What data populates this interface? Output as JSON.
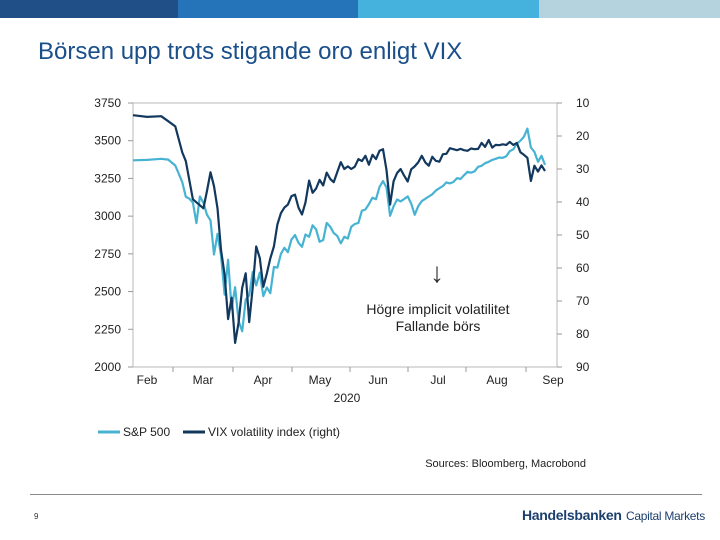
{
  "colors": {
    "bar": [
      "#1f4f86",
      "#2573b8",
      "#45b2de",
      "#b5d2df"
    ],
    "title": "#1a4f8a",
    "sp500": "#47b3d3",
    "vix": "#12385e"
  },
  "title": "Börsen upp trots stigande oro enligt VIX",
  "chart_data": {
    "type": "line",
    "x_months": [
      "Feb",
      "Mar",
      "Apr",
      "May",
      "Jun",
      "Jul",
      "Aug",
      "Sep"
    ],
    "x_year": "2020",
    "y_left": {
      "range": [
        2000,
        3750
      ],
      "ticks": [
        "3750",
        "3500",
        "3250",
        "3000",
        "2750",
        "2500",
        "2250",
        "2000"
      ]
    },
    "y_right": {
      "range": [
        10,
        90
      ],
      "inverted": true,
      "ticks": [
        "10",
        "20",
        "30",
        "40",
        "50",
        "60",
        "70",
        "80",
        "90"
      ]
    },
    "annotation": {
      "arrow": "↓",
      "line1": "Högre implicit volatilitet",
      "line2": "Fallande börs"
    },
    "series": [
      {
        "name": "S&P 500",
        "axis": "left",
        "points": [
          [
            0,
            3370
          ],
          [
            2,
            3373
          ],
          [
            4,
            3380
          ],
          [
            5,
            3375
          ],
          [
            6,
            3336
          ],
          [
            7,
            3225
          ],
          [
            7.5,
            3128
          ],
          [
            8,
            3116
          ],
          [
            8.5,
            3090
          ],
          [
            9,
            2954
          ],
          [
            9.5,
            3130
          ],
          [
            10,
            3090
          ],
          [
            10.5,
            3010
          ],
          [
            11,
            2972
          ],
          [
            11.5,
            2746
          ],
          [
            12,
            2882
          ],
          [
            12.5,
            2741
          ],
          [
            13,
            2480
          ],
          [
            13.5,
            2711
          ],
          [
            14,
            2386
          ],
          [
            14.5,
            2529
          ],
          [
            15,
            2305
          ],
          [
            15.5,
            2237
          ],
          [
            16,
            2447
          ],
          [
            16.5,
            2475
          ],
          [
            17,
            2630
          ],
          [
            17.5,
            2541
          ],
          [
            18,
            2626
          ],
          [
            18.5,
            2470
          ],
          [
            19,
            2527
          ],
          [
            19.5,
            2489
          ],
          [
            20,
            2663
          ],
          [
            20.5,
            2659
          ],
          [
            21,
            2750
          ],
          [
            21.5,
            2790
          ],
          [
            22,
            2761
          ],
          [
            22.5,
            2846
          ],
          [
            23,
            2875
          ],
          [
            23.5,
            2823
          ],
          [
            24,
            2797
          ],
          [
            24.5,
            2878
          ],
          [
            25,
            2863
          ],
          [
            25.5,
            2939
          ],
          [
            26,
            2912
          ],
          [
            26.5,
            2830
          ],
          [
            27,
            2842
          ],
          [
            27.5,
            2955
          ],
          [
            28,
            2930
          ],
          [
            28.5,
            2888
          ],
          [
            29,
            2870
          ],
          [
            29.5,
            2820
          ],
          [
            30,
            2863
          ],
          [
            30.5,
            2852
          ],
          [
            31,
            2930
          ],
          [
            31.5,
            2948
          ],
          [
            32,
            2955
          ],
          [
            32.5,
            3036
          ],
          [
            33,
            3044
          ],
          [
            33.5,
            3080
          ],
          [
            34,
            3122
          ],
          [
            34.5,
            3112
          ],
          [
            35,
            3193
          ],
          [
            35.5,
            3232
          ],
          [
            36,
            3190
          ],
          [
            36.5,
            3002
          ],
          [
            37,
            3066
          ],
          [
            37.5,
            3110
          ],
          [
            38,
            3098
          ],
          [
            38.5,
            3113
          ],
          [
            39,
            3131
          ],
          [
            39.5,
            3083
          ],
          [
            40,
            3009
          ],
          [
            40.5,
            3065
          ],
          [
            41,
            3100
          ],
          [
            41.5,
            3115
          ],
          [
            42,
            3130
          ],
          [
            42.5,
            3145
          ],
          [
            43,
            3169
          ],
          [
            43.5,
            3185
          ],
          [
            44,
            3200
          ],
          [
            44.5,
            3224
          ],
          [
            45,
            3217
          ],
          [
            45.5,
            3226
          ],
          [
            46,
            3252
          ],
          [
            46.5,
            3246
          ],
          [
            47,
            3271
          ],
          [
            47.5,
            3294
          ],
          [
            48,
            3288
          ],
          [
            48.5,
            3297
          ],
          [
            49,
            3327
          ],
          [
            49.5,
            3334
          ],
          [
            50,
            3351
          ],
          [
            50.5,
            3360
          ],
          [
            51,
            3373
          ],
          [
            51.5,
            3380
          ],
          [
            52,
            3389
          ],
          [
            52.5,
            3386
          ],
          [
            53,
            3397
          ],
          [
            53.5,
            3431
          ],
          [
            54,
            3443
          ],
          [
            54.5,
            3480
          ],
          [
            55,
            3500
          ],
          [
            55.5,
            3526
          ],
          [
            56,
            3580
          ],
          [
            56.5,
            3455
          ],
          [
            57,
            3426
          ],
          [
            57.5,
            3360
          ],
          [
            58,
            3400
          ],
          [
            58.5,
            3340
          ]
        ]
      },
      {
        "name": "VIX volatility index (right)",
        "axis": "right",
        "points": [
          [
            0,
            13.7
          ],
          [
            2,
            14.2
          ],
          [
            4,
            14.0
          ],
          [
            5,
            15.5
          ],
          [
            6,
            17.1
          ],
          [
            7,
            25.0
          ],
          [
            7.5,
            27.6
          ],
          [
            8,
            33.3
          ],
          [
            8.5,
            39.2
          ],
          [
            9,
            40.1
          ],
          [
            10,
            41.9
          ],
          [
            10.5,
            36.8
          ],
          [
            11,
            31.0
          ],
          [
            11.5,
            35.2
          ],
          [
            12,
            41.9
          ],
          [
            12.5,
            54.5
          ],
          [
            13,
            62.0
          ],
          [
            13.5,
            75.5
          ],
          [
            14,
            69.0
          ],
          [
            14.5,
            82.7
          ],
          [
            15,
            76.5
          ],
          [
            15.5,
            66.0
          ],
          [
            16,
            61.6
          ],
          [
            16.5,
            76.4
          ],
          [
            17,
            66.0
          ],
          [
            17.5,
            53.5
          ],
          [
            18,
            57.0
          ],
          [
            18.5,
            65.7
          ],
          [
            19,
            61.7
          ],
          [
            19.5,
            57.1
          ],
          [
            20,
            53.5
          ],
          [
            20.5,
            46.8
          ],
          [
            21,
            43.4
          ],
          [
            21.5,
            41.7
          ],
          [
            22,
            40.8
          ],
          [
            22.5,
            38.2
          ],
          [
            23,
            37.8
          ],
          [
            23.5,
            41.7
          ],
          [
            24,
            43.8
          ],
          [
            24.5,
            40.1
          ],
          [
            25,
            33.5
          ],
          [
            25.5,
            37.2
          ],
          [
            26,
            35.9
          ],
          [
            26.5,
            33.3
          ],
          [
            27,
            35.0
          ],
          [
            27.5,
            31.1
          ],
          [
            28,
            33.0
          ],
          [
            28.5,
            34.0
          ],
          [
            29,
            31.0
          ],
          [
            29.5,
            27.9
          ],
          [
            30,
            30.0
          ],
          [
            30.5,
            29.2
          ],
          [
            31,
            30.0
          ],
          [
            31.5,
            29.3
          ],
          [
            32,
            27.0
          ],
          [
            32.5,
            27.6
          ],
          [
            33,
            26.0
          ],
          [
            33.5,
            28.7
          ],
          [
            34,
            25.7
          ],
          [
            34.5,
            27.0
          ],
          [
            35,
            24.5
          ],
          [
            35.5,
            24.0
          ],
          [
            36,
            30.3
          ],
          [
            36.5,
            40.8
          ],
          [
            37,
            33.7
          ],
          [
            37.5,
            31.2
          ],
          [
            38,
            30.0
          ],
          [
            38.5,
            32.0
          ],
          [
            39,
            33.8
          ],
          [
            39.5,
            30.1
          ],
          [
            40,
            29.2
          ],
          [
            40.5,
            28.0
          ],
          [
            41,
            26.0
          ],
          [
            41.5,
            28.0
          ],
          [
            42,
            29.0
          ],
          [
            42.5,
            26.3
          ],
          [
            43,
            27.5
          ],
          [
            43.5,
            27.8
          ],
          [
            44,
            25.5
          ],
          [
            44.5,
            25.4
          ],
          [
            45,
            23.7
          ],
          [
            45.5,
            24.0
          ],
          [
            46,
            24.3
          ],
          [
            46.5,
            23.9
          ],
          [
            47,
            24.3
          ],
          [
            47.5,
            24.5
          ],
          [
            48,
            23.8
          ],
          [
            48.5,
            24.0
          ],
          [
            49,
            23.9
          ],
          [
            49.5,
            22.1
          ],
          [
            50,
            23.3
          ],
          [
            50.5,
            21.2
          ],
          [
            51,
            23.5
          ],
          [
            51.5,
            22.7
          ],
          [
            52,
            22.8
          ],
          [
            52.5,
            22.5
          ],
          [
            53,
            22.7
          ],
          [
            53.5,
            21.8
          ],
          [
            54,
            22.7
          ],
          [
            54.5,
            22.1
          ],
          [
            55,
            24.9
          ],
          [
            55.5,
            25.7
          ],
          [
            56,
            26.6
          ],
          [
            56.5,
            33.6
          ],
          [
            57,
            29.0
          ],
          [
            57.5,
            30.8
          ],
          [
            58,
            28.9
          ],
          [
            58.5,
            30.6
          ]
        ]
      }
    ],
    "legend": [
      "S&P 500",
      "VIX volatility index (right)"
    ],
    "source": "Sources: Bloomberg, Macrobond"
  },
  "footer": {
    "page_number": "9",
    "brand_main": "Handelsbanken",
    "brand_sub": "Capital Markets"
  }
}
